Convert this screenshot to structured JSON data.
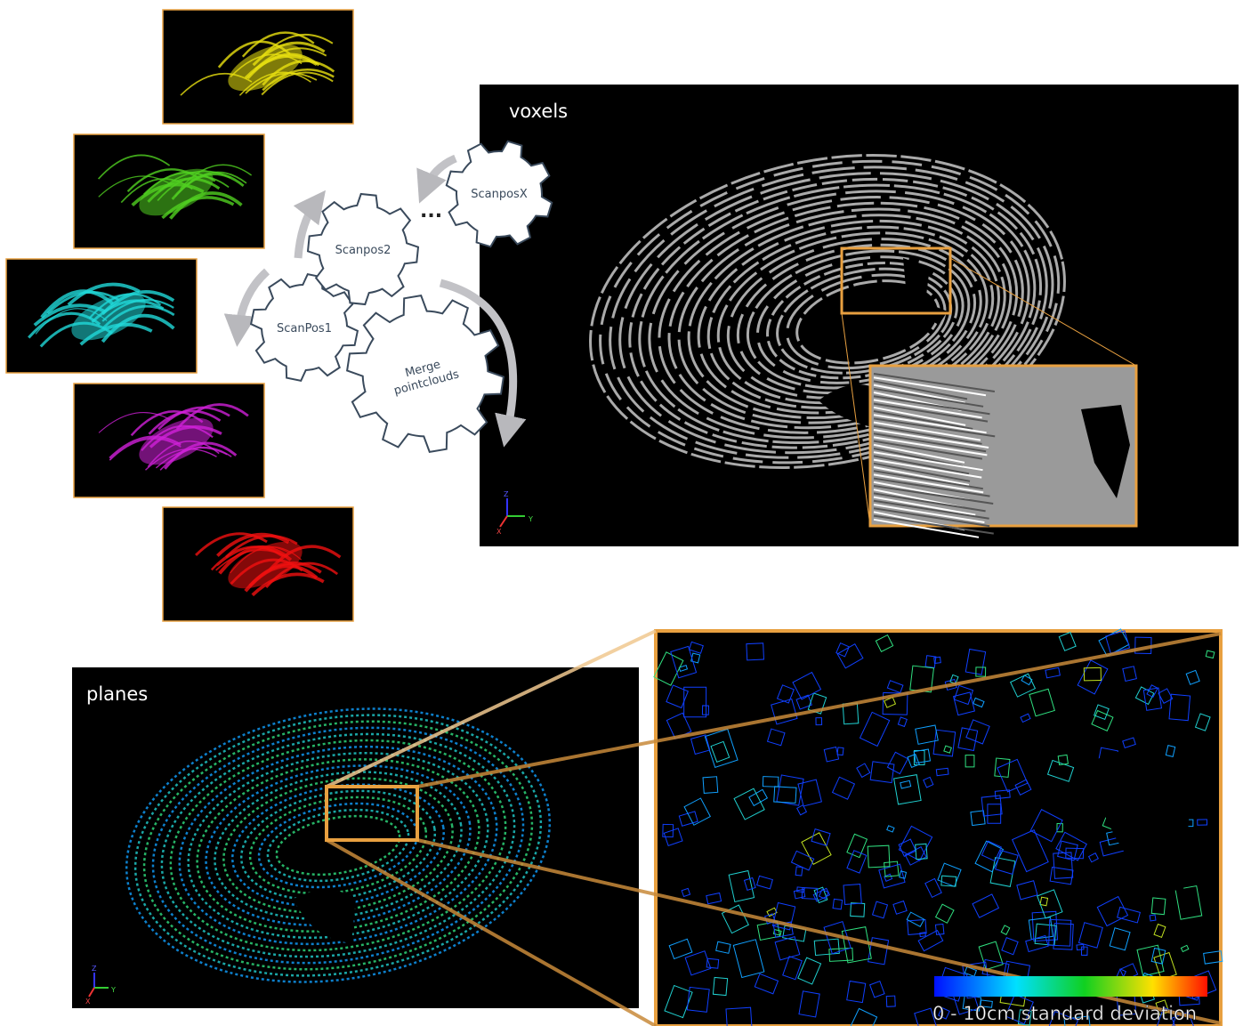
{
  "gears": [
    {
      "label": "ScanPos1"
    },
    {
      "label": "Scanpos2"
    },
    {
      "label": "ScanposX"
    },
    {
      "lines": [
        "Merge",
        "pointclouds"
      ]
    }
  ],
  "ellipsis": "...",
  "panels": {
    "voxels": {
      "label": "voxels",
      "axes": [
        "Z",
        "Y",
        "X"
      ]
    },
    "planes": {
      "label": "planes",
      "axes": [
        "Z",
        "Y",
        "X"
      ]
    }
  },
  "colorbar": {
    "label": "0 - 10cm standard deviation"
  }
}
